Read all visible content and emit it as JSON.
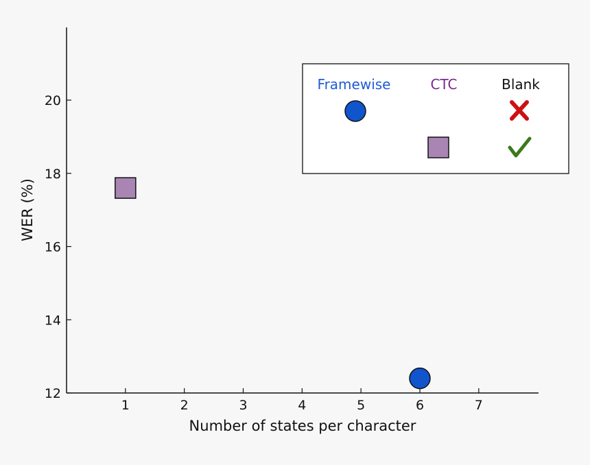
{
  "chart_data": {
    "type": "scatter",
    "title": "",
    "xlabel": "Number of states per character",
    "ylabel": "WER (%)",
    "xlim": [
      0,
      8
    ],
    "ylim": [
      12,
      22
    ],
    "xticks": [
      "1",
      "2",
      "3",
      "4",
      "5",
      "6",
      "7"
    ],
    "yticks": [
      "12",
      "14",
      "16",
      "18",
      "20"
    ],
    "grid": false,
    "points": [
      {
        "x": 1,
        "y": 17.6,
        "marker": "square",
        "color": "#a985b4"
      },
      {
        "x": 6,
        "y": 12.4,
        "marker": "circle",
        "color": "#1155cc"
      }
    ],
    "legend": {
      "placement": "top-right",
      "headers": [
        {
          "label": "Framewise",
          "color": "#1e5bd6"
        },
        {
          "label": "CTC",
          "color": "#7b2a8c"
        },
        {
          "label": "Blank",
          "color": "#111111"
        }
      ],
      "rows": [
        {
          "marker": "circle",
          "marker_color": "#1155cc",
          "blank": "cross-icon",
          "blank_color": "#cc1111"
        },
        {
          "marker": "square",
          "marker_color": "#a985b4",
          "blank": "check-icon",
          "blank_color": "#3c7a1e"
        }
      ]
    }
  }
}
